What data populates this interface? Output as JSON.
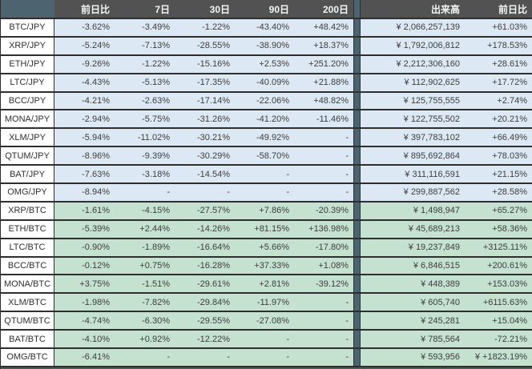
{
  "colors": {
    "header_bg": "#525252",
    "header_text": "#f5f5f5",
    "slate_accent": "#4d6470",
    "jpy_row_bg": "#dce9f4",
    "btc_row_bg": "#c5e2d1",
    "border": "#2e2e2e",
    "bottom_bar": "#4d5b56",
    "cell_text": "#3d3d3d"
  },
  "table": {
    "headers": {
      "cols": [
        "前日比",
        "7日",
        "30日",
        "90日",
        "200日"
      ],
      "volume": "出来高",
      "day_change": "前日比"
    },
    "sections": [
      {
        "name": "jpy",
        "rows": [
          {
            "pair": "BTC/JPY",
            "changes": [
              "-3.62%",
              "-3.49%",
              "-1.22%",
              "-43.40%",
              "+48.42%"
            ],
            "volume": "¥ 2,066,257,139",
            "volume_change": "+61.03%"
          },
          {
            "pair": "XRP/JPY",
            "changes": [
              "-5.24%",
              "-7.13%",
              "-28.55%",
              "-38.90%",
              "+18.37%"
            ],
            "volume": "¥ 1,792,006,812",
            "volume_change": "+178.53%"
          },
          {
            "pair": "ETH/JPY",
            "changes": [
              "-9.26%",
              "-1.22%",
              "-15.16%",
              "+2.53%",
              "+251.20%"
            ],
            "volume": "¥ 2,212,306,160",
            "volume_change": "+28.61%"
          },
          {
            "pair": "LTC/JPY",
            "changes": [
              "-4.43%",
              "-5.13%",
              "-17.35%",
              "-40.09%",
              "+21.88%"
            ],
            "volume": "¥ 112,902,625",
            "volume_change": "+17.72%"
          },
          {
            "pair": "BCC/JPY",
            "changes": [
              "-4.21%",
              "-2.63%",
              "-17.14%",
              "-22.06%",
              "+48.82%"
            ],
            "volume": "¥ 125,755,555",
            "volume_change": "+2.74%"
          },
          {
            "pair": "MONA/JPY",
            "changes": [
              "-2.94%",
              "-5.75%",
              "-31.26%",
              "-41.20%",
              "-11.46%"
            ],
            "volume": "¥ 122,755,502",
            "volume_change": "+20.21%"
          },
          {
            "pair": "XLM/JPY",
            "changes": [
              "-5.94%",
              "-11.02%",
              "-30.21%",
              "-49.92%",
              "-"
            ],
            "volume": "¥ 397,783,102",
            "volume_change": "+66.49%"
          },
          {
            "pair": "QTUM/JPY",
            "changes": [
              "-8.96%",
              "-9.39%",
              "-30.29%",
              "-58.70%",
              "-"
            ],
            "volume": "¥ 895,692,864",
            "volume_change": "+78.03%"
          },
          {
            "pair": "BAT/JPY",
            "changes": [
              "-7.63%",
              "-3.18%",
              "-14.54%",
              "-",
              "-"
            ],
            "volume": "¥ 311,116,591",
            "volume_change": "+21.15%"
          },
          {
            "pair": "OMG/JPY",
            "changes": [
              "-8.94%",
              "-",
              "-",
              "-",
              "-"
            ],
            "volume": "¥ 299,887,562",
            "volume_change": "+28.58%"
          }
        ]
      },
      {
        "name": "btc",
        "rows": [
          {
            "pair": "XRP/BTC",
            "changes": [
              "-1.61%",
              "-4.15%",
              "-27.57%",
              "+7.86%",
              "-20.39%"
            ],
            "volume": "¥ 1,498,947",
            "volume_change": "+65.27%"
          },
          {
            "pair": "ETH/BTC",
            "changes": [
              "-5.39%",
              "+2.44%",
              "-14.26%",
              "+81.15%",
              "+136.98%"
            ],
            "volume": "¥ 45,689,213",
            "volume_change": "+58.36%"
          },
          {
            "pair": "LTC/BTC",
            "changes": [
              "-0.90%",
              "-1.89%",
              "-16.64%",
              "+5.66%",
              "-17.80%"
            ],
            "volume": "¥ 19,237,849",
            "volume_change": "+3125.11%"
          },
          {
            "pair": "BCC/BTC",
            "changes": [
              "-0.12%",
              "+0.75%",
              "-16.28%",
              "+37.33%",
              "+1.08%"
            ],
            "volume": "¥ 6,846,515",
            "volume_change": "+200.61%"
          },
          {
            "pair": "MONA/BTC",
            "changes": [
              "+3.75%",
              "-1.51%",
              "-29.61%",
              "+2.81%",
              "-39.12%"
            ],
            "volume": "¥ 448,389",
            "volume_change": "+153.03%"
          },
          {
            "pair": "XLM/BTC",
            "changes": [
              "-1.98%",
              "-7.82%",
              "-29.84%",
              "-11.97%",
              "-"
            ],
            "volume": "¥ 605,740",
            "volume_change": "+6115.63%"
          },
          {
            "pair": "QTUM/BTC",
            "changes": [
              "-4.74%",
              "-6.30%",
              "-29.55%",
              "-27.08%",
              "-"
            ],
            "volume": "¥ 245,281",
            "volume_change": "+15.04%"
          },
          {
            "pair": "BAT/BTC",
            "changes": [
              "-4.10%",
              "+0.92%",
              "-12.22%",
              "-",
              "-"
            ],
            "volume": "¥ 785,564",
            "volume_change": "-72.21%"
          },
          {
            "pair": "OMG/BTC",
            "changes": [
              "-6.41%",
              "-",
              "-",
              "-",
              "-"
            ],
            "volume": "¥ 593,956",
            "volume_change": "¥ +1823.19%"
          }
        ]
      }
    ]
  }
}
